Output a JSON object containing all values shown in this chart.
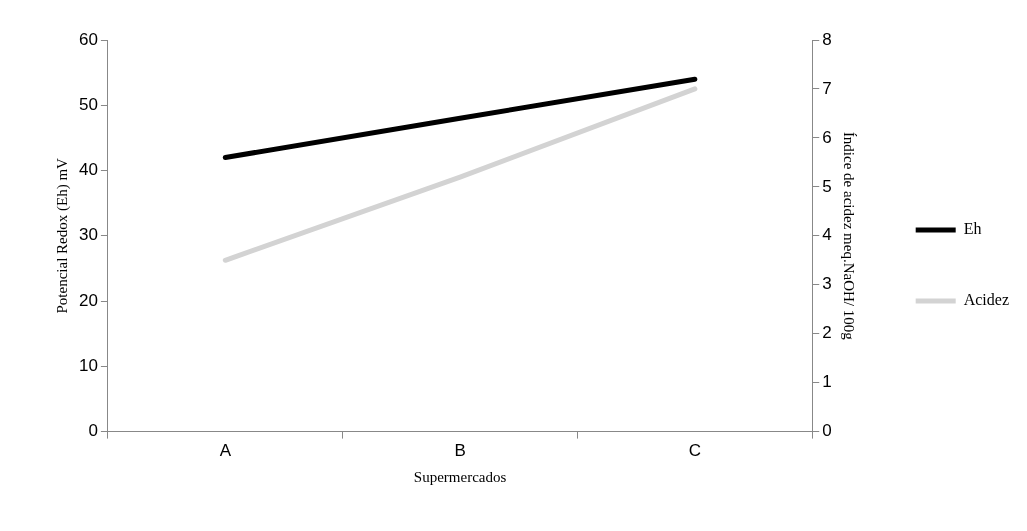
{
  "chart_data": {
    "type": "line",
    "xlabel": "Supermercados",
    "ylabel": "Potencial Redox (Eh) mV",
    "y2label": "Índice de acidez meq.NaOH/ 100g",
    "categories": [
      "A",
      "B",
      "C"
    ],
    "series": [
      {
        "name": "Eh",
        "color": "#000000",
        "values": [
          42,
          48,
          54
        ]
      },
      {
        "name": "Acidez",
        "color": "#d3d3d3",
        "values": [
          3.5,
          5.2,
          7.0
        ],
        "axis": "y2"
      }
    ],
    "ylim": [
      0,
      60
    ],
    "yticks": [
      0,
      10,
      20,
      30,
      40,
      50,
      60
    ],
    "y2lim": [
      0,
      8
    ],
    "y2ticks": [
      0,
      1,
      2,
      3,
      4,
      5,
      6,
      7,
      8
    ],
    "grid": false,
    "legend": "right",
    "marker": "none",
    "line_style": "solid"
  }
}
